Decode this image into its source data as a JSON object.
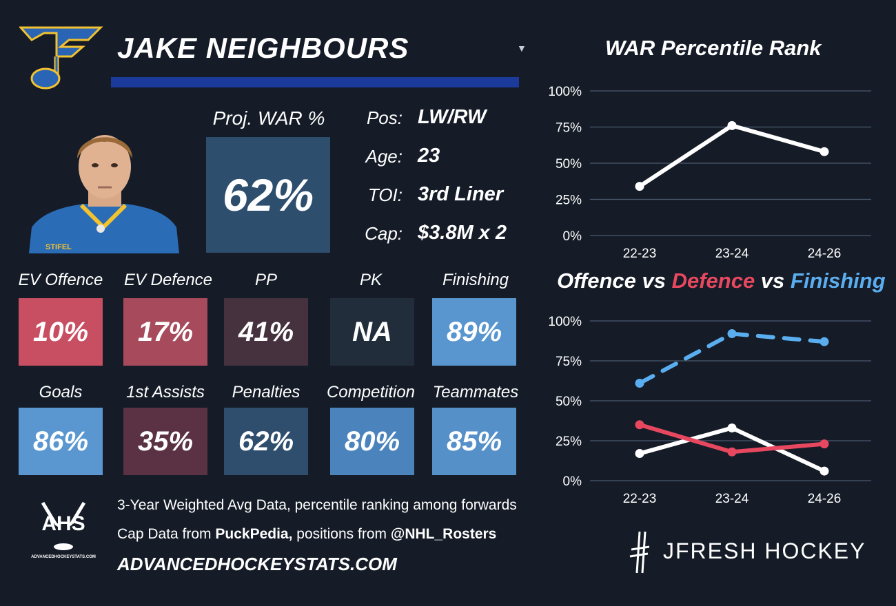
{
  "player": {
    "name": "JAKE NEIGHBOURS",
    "proj_war_label": "Proj. WAR %",
    "proj_war_value": "62%",
    "info": [
      {
        "key": "Pos:",
        "value": "LW/RW"
      },
      {
        "key": "Age:",
        "value": "23"
      },
      {
        "key": "TOI:",
        "value": "3rd Liner"
      },
      {
        "key": "Cap:",
        "value": "$3.8M x 2"
      }
    ]
  },
  "logo": {
    "team_icon": "blues-note-logo"
  },
  "stats_row1": [
    {
      "label": "EV Offence",
      "value": "10%",
      "color": "#c84e62"
    },
    {
      "label": "EV Defence",
      "value": "17%",
      "color": "#a64a5c"
    },
    {
      "label": "PP",
      "value": "41%",
      "color": "#46323f"
    },
    {
      "label": "PK",
      "value": "NA",
      "color": "#222d3b"
    },
    {
      "label": "Finishing",
      "value": "89%",
      "color": "#5996cf"
    }
  ],
  "stats_row2": [
    {
      "label": "Goals",
      "value": "86%",
      "color": "#5a97d0"
    },
    {
      "label": "1st Assists",
      "value": "35%",
      "color": "#5a3243"
    },
    {
      "label": "Penalties",
      "value": "62%",
      "color": "#2f4e6d"
    },
    {
      "label": "Competition",
      "value": "80%",
      "color": "#4b84bc"
    },
    {
      "label": "Teammates",
      "value": "85%",
      "color": "#5690c9"
    }
  ],
  "footer": {
    "line1": "3-Year Weighted Avg Data, percentile ranking among forwards",
    "line2_prefix": "Cap Data from ",
    "line2_bold1": "PuckPedia,",
    "line2_mid": " positions from ",
    "line2_bold2": "@NHL_Rosters",
    "site": "ADVANCEDHOCKEYSTATS.COM",
    "ahs_logo_text": "AHS",
    "ahs_logo_sub": "ADVANCEDHOCKEYSTATS.COM",
    "brand": "JFRESH HOCKEY"
  },
  "chart_data": [
    {
      "type": "line",
      "title": "WAR Percentile Rank",
      "categories": [
        "22-23",
        "23-24",
        "24-26"
      ],
      "series": [
        {
          "values": [
            34,
            76,
            58
          ],
          "color": "#ffffff",
          "dash": false
        }
      ],
      "ylim": [
        0,
        100
      ],
      "yticks": [
        "0%",
        "25%",
        "50%",
        "75%",
        "100%"
      ],
      "grid": true
    },
    {
      "type": "line",
      "title_parts": [
        {
          "text": "Offence",
          "color": "#ffffff"
        },
        {
          "text": " vs ",
          "color": "#ffffff"
        },
        {
          "text": "Defence",
          "color": "#e8485f"
        },
        {
          "text": " vs ",
          "color": "#ffffff"
        },
        {
          "text": "Finishing",
          "color": "#5aaef0"
        }
      ],
      "categories": [
        "22-23",
        "23-24",
        "24-26"
      ],
      "series": [
        {
          "values": [
            61,
            92,
            87
          ],
          "color": "#5aaef0",
          "dash": true
        },
        {
          "values": [
            17,
            33,
            6
          ],
          "color": "#ffffff",
          "dash": false
        },
        {
          "values": [
            35,
            18,
            23
          ],
          "color": "#e8485f",
          "dash": false
        }
      ],
      "ylim": [
        0,
        100
      ],
      "yticks": [
        "0%",
        "25%",
        "50%",
        "75%",
        "100%"
      ],
      "grid": true
    }
  ]
}
